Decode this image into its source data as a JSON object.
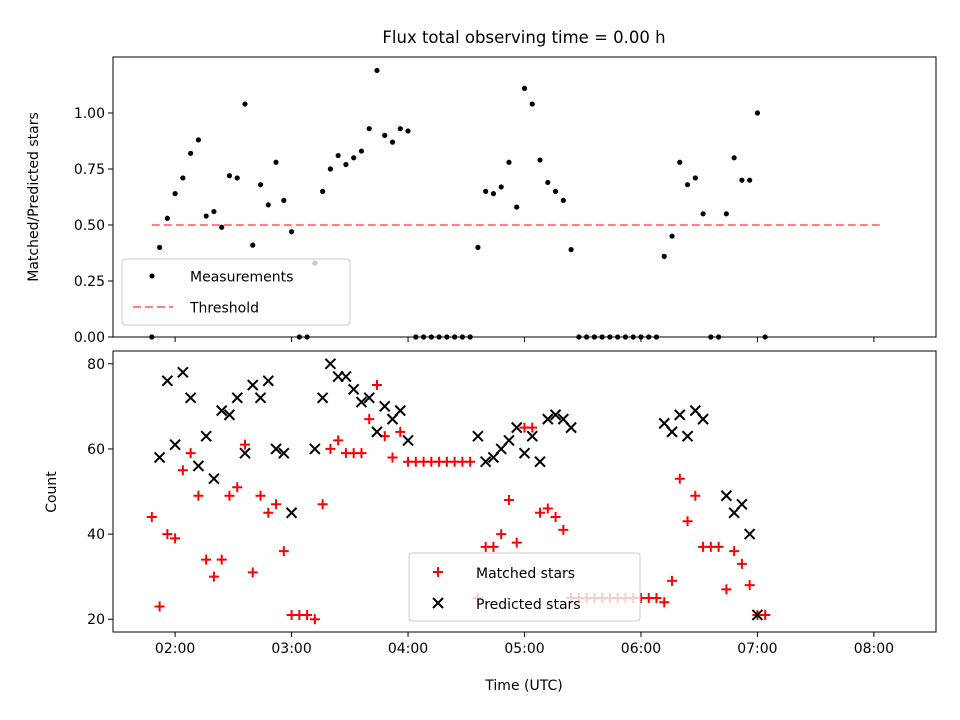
{
  "chart_data": [
    {
      "type": "scatter",
      "title": "Flux total observing time = 0.00 h",
      "xlabel": "",
      "ylabel": "Matched/Predicted stars",
      "xlim": [
        "01:28",
        "08:32"
      ],
      "ylim": [
        0,
        1.25
      ],
      "x_ticks": [
        "02:00",
        "03:00",
        "04:00",
        "05:00",
        "06:00",
        "07:00",
        "08:00"
      ],
      "y_ticks": [
        "0.00",
        "0.25",
        "0.50",
        "0.75",
        "1.00"
      ],
      "legend": {
        "placement": "lower-left",
        "entries": [
          "Measurements",
          "Threshold"
        ]
      },
      "series": [
        {
          "name": "Measurements",
          "marker": "dot",
          "color": "#000000",
          "points": [
            [
              "01:48",
              0.0
            ],
            [
              "01:52",
              0.4
            ],
            [
              "01:56",
              0.53
            ],
            [
              "02:00",
              0.64
            ],
            [
              "02:04",
              0.71
            ],
            [
              "02:08",
              0.82
            ],
            [
              "02:12",
              0.88
            ],
            [
              "02:16",
              0.54
            ],
            [
              "02:20",
              0.56
            ],
            [
              "02:24",
              0.49
            ],
            [
              "02:28",
              0.72
            ],
            [
              "02:32",
              0.71
            ],
            [
              "02:36",
              1.04
            ],
            [
              "02:40",
              0.41
            ],
            [
              "02:44",
              0.68
            ],
            [
              "02:48",
              0.59
            ],
            [
              "02:52",
              0.78
            ],
            [
              "02:56",
              0.61
            ],
            [
              "03:00",
              0.47
            ],
            [
              "03:04",
              0.0
            ],
            [
              "03:08",
              0.0
            ],
            [
              "03:12",
              0.33
            ],
            [
              "03:16",
              0.65
            ],
            [
              "03:20",
              0.75
            ],
            [
              "03:24",
              0.81
            ],
            [
              "03:28",
              0.77
            ],
            [
              "03:32",
              0.8
            ],
            [
              "03:36",
              0.83
            ],
            [
              "03:40",
              0.93
            ],
            [
              "03:44",
              1.19
            ],
            [
              "03:48",
              0.9
            ],
            [
              "03:52",
              0.87
            ],
            [
              "03:56",
              0.93
            ],
            [
              "04:00",
              0.92
            ],
            [
              "04:04",
              0.0
            ],
            [
              "04:08",
              0.0
            ],
            [
              "04:12",
              0.0
            ],
            [
              "04:16",
              0.0
            ],
            [
              "04:20",
              0.0
            ],
            [
              "04:24",
              0.0
            ],
            [
              "04:28",
              0.0
            ],
            [
              "04:32",
              0.0
            ],
            [
              "04:36",
              0.4
            ],
            [
              "04:40",
              0.65
            ],
            [
              "04:44",
              0.64
            ],
            [
              "04:48",
              0.67
            ],
            [
              "04:52",
              0.78
            ],
            [
              "04:56",
              0.58
            ],
            [
              "05:00",
              1.11
            ],
            [
              "05:04",
              1.04
            ],
            [
              "05:08",
              0.79
            ],
            [
              "05:12",
              0.69
            ],
            [
              "05:16",
              0.65
            ],
            [
              "05:20",
              0.61
            ],
            [
              "05:24",
              0.39
            ],
            [
              "05:28",
              0.0
            ],
            [
              "05:32",
              0.0
            ],
            [
              "05:36",
              0.0
            ],
            [
              "05:40",
              0.0
            ],
            [
              "05:44",
              0.0
            ],
            [
              "05:48",
              0.0
            ],
            [
              "05:52",
              0.0
            ],
            [
              "05:56",
              0.0
            ],
            [
              "06:00",
              0.0
            ],
            [
              "06:04",
              0.0
            ],
            [
              "06:08",
              0.0
            ],
            [
              "06:12",
              0.36
            ],
            [
              "06:16",
              0.45
            ],
            [
              "06:20",
              0.78
            ],
            [
              "06:24",
              0.68
            ],
            [
              "06:28",
              0.71
            ],
            [
              "06:32",
              0.55
            ],
            [
              "06:36",
              0.0
            ],
            [
              "06:40",
              0.0
            ],
            [
              "06:44",
              0.55
            ],
            [
              "06:48",
              0.8
            ],
            [
              "06:52",
              0.7
            ],
            [
              "06:56",
              0.7
            ],
            [
              "07:00",
              1.0
            ],
            [
              "07:04",
              0.0
            ]
          ]
        },
        {
          "name": "Threshold",
          "style": "dashed-line",
          "color": "#ff7f7f",
          "points": [
            [
              "01:48",
              0.5
            ],
            [
              "08:04",
              0.5
            ]
          ]
        }
      ]
    },
    {
      "type": "scatter",
      "title": "",
      "xlabel": "Time (UTC)",
      "ylabel": "Count",
      "xlim": [
        "01:28",
        "08:32"
      ],
      "ylim": [
        17,
        83
      ],
      "x_ticks": [
        "02:00",
        "03:00",
        "04:00",
        "05:00",
        "06:00",
        "07:00",
        "08:00"
      ],
      "y_ticks": [
        "20",
        "40",
        "60",
        "80"
      ],
      "legend": {
        "placement": "lower-center",
        "entries": [
          "Matched stars",
          "Predicted stars"
        ]
      },
      "series": [
        {
          "name": "Matched stars",
          "marker": "plus",
          "color": "#ff0000",
          "points": [
            [
              "01:48",
              44
            ],
            [
              "01:52",
              23
            ],
            [
              "01:56",
              40
            ],
            [
              "02:00",
              39
            ],
            [
              "02:04",
              55
            ],
            [
              "02:08",
              59
            ],
            [
              "02:12",
              49
            ],
            [
              "02:16",
              34
            ],
            [
              "02:20",
              30
            ],
            [
              "02:24",
              34
            ],
            [
              "02:28",
              49
            ],
            [
              "02:32",
              51
            ],
            [
              "02:36",
              61
            ],
            [
              "02:40",
              31
            ],
            [
              "02:44",
              49
            ],
            [
              "02:48",
              45
            ],
            [
              "02:52",
              47
            ],
            [
              "02:56",
              36
            ],
            [
              "03:00",
              21
            ],
            [
              "03:04",
              21
            ],
            [
              "03:08",
              21
            ],
            [
              "03:12",
              20
            ],
            [
              "03:16",
              47
            ],
            [
              "03:20",
              60
            ],
            [
              "03:24",
              62
            ],
            [
              "03:28",
              59
            ],
            [
              "03:32",
              59
            ],
            [
              "03:36",
              59
            ],
            [
              "03:40",
              67
            ],
            [
              "03:44",
              75
            ],
            [
              "03:48",
              63
            ],
            [
              "03:52",
              58
            ],
            [
              "03:56",
              64
            ],
            [
              "04:00",
              57
            ],
            [
              "04:04",
              57
            ],
            [
              "04:08",
              57
            ],
            [
              "04:12",
              57
            ],
            [
              "04:16",
              57
            ],
            [
              "04:20",
              57
            ],
            [
              "04:24",
              57
            ],
            [
              "04:28",
              57
            ],
            [
              "04:32",
              57
            ],
            [
              "04:36",
              25
            ],
            [
              "04:40",
              37
            ],
            [
              "04:44",
              37
            ],
            [
              "04:48",
              40
            ],
            [
              "04:52",
              48
            ],
            [
              "04:56",
              38
            ],
            [
              "05:00",
              65
            ],
            [
              "05:04",
              65
            ],
            [
              "05:08",
              45
            ],
            [
              "05:12",
              46
            ],
            [
              "05:16",
              44
            ],
            [
              "05:20",
              41
            ],
            [
              "05:24",
              25
            ],
            [
              "05:28",
              25
            ],
            [
              "05:32",
              25
            ],
            [
              "05:36",
              25
            ],
            [
              "05:40",
              25
            ],
            [
              "05:44",
              25
            ],
            [
              "05:48",
              25
            ],
            [
              "05:52",
              25
            ],
            [
              "05:56",
              25
            ],
            [
              "06:00",
              25
            ],
            [
              "06:04",
              25
            ],
            [
              "06:08",
              25
            ],
            [
              "06:12",
              24
            ],
            [
              "06:16",
              29
            ],
            [
              "06:20",
              53
            ],
            [
              "06:24",
              43
            ],
            [
              "06:28",
              49
            ],
            [
              "06:32",
              37
            ],
            [
              "06:36",
              37
            ],
            [
              "06:40",
              37
            ],
            [
              "06:44",
              27
            ],
            [
              "06:48",
              36
            ],
            [
              "06:52",
              33
            ],
            [
              "06:56",
              28
            ],
            [
              "07:00",
              21
            ],
            [
              "07:04",
              21
            ]
          ]
        },
        {
          "name": "Predicted stars",
          "marker": "x",
          "color": "#000000",
          "points": [
            [
              "01:52",
              58
            ],
            [
              "01:56",
              76
            ],
            [
              "02:00",
              61
            ],
            [
              "02:04",
              78
            ],
            [
              "02:08",
              72
            ],
            [
              "02:12",
              56
            ],
            [
              "02:16",
              63
            ],
            [
              "02:20",
              53
            ],
            [
              "02:24",
              69
            ],
            [
              "02:28",
              68
            ],
            [
              "02:32",
              72
            ],
            [
              "02:36",
              59
            ],
            [
              "02:40",
              75
            ],
            [
              "02:44",
              72
            ],
            [
              "02:48",
              76
            ],
            [
              "02:52",
              60
            ],
            [
              "02:56",
              59
            ],
            [
              "03:00",
              45
            ],
            [
              "03:12",
              60
            ],
            [
              "03:16",
              72
            ],
            [
              "03:20",
              80
            ],
            [
              "03:24",
              77
            ],
            [
              "03:28",
              77
            ],
            [
              "03:32",
              74
            ],
            [
              "03:36",
              71
            ],
            [
              "03:40",
              72
            ],
            [
              "03:44",
              64
            ],
            [
              "03:48",
              70
            ],
            [
              "03:52",
              67
            ],
            [
              "03:56",
              69
            ],
            [
              "04:00",
              62
            ],
            [
              "04:36",
              63
            ],
            [
              "04:40",
              57
            ],
            [
              "04:44",
              58
            ],
            [
              "04:48",
              60
            ],
            [
              "04:52",
              62
            ],
            [
              "04:56",
              65
            ],
            [
              "05:00",
              59
            ],
            [
              "05:04",
              63
            ],
            [
              "05:08",
              57
            ],
            [
              "05:12",
              67
            ],
            [
              "05:16",
              68
            ],
            [
              "05:20",
              67
            ],
            [
              "05:24",
              65
            ],
            [
              "06:12",
              66
            ],
            [
              "06:16",
              64
            ],
            [
              "06:20",
              68
            ],
            [
              "06:24",
              63
            ],
            [
              "06:28",
              69
            ],
            [
              "06:32",
              67
            ],
            [
              "06:44",
              49
            ],
            [
              "06:48",
              45
            ],
            [
              "06:52",
              47
            ],
            [
              "06:56",
              40
            ],
            [
              "07:00",
              21
            ]
          ]
        }
      ]
    }
  ]
}
